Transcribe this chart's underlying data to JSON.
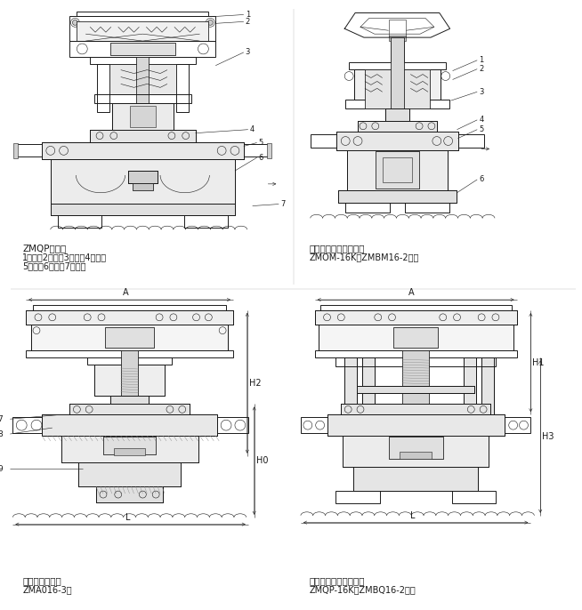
{
  "bg_color": "#ffffff",
  "line_color": "#1a1a1a",
  "fig_width": 6.54,
  "fig_height": 6.86,
  "labels": {
    "top_left_title": "ZMQP单座型",
    "top_left_desc1": "1、膜片2、推杆3、支架4、阀杆",
    "top_left_desc2": "5、阀芯6、阀座7、阀体",
    "top_right_title": "套筒切断阀（带手轮）",
    "top_right_desc": "ZMOM-16K（ZMBM16-2）型",
    "bot_left_title": "二位三通切断阀",
    "bot_left_desc": "ZMA016-3型",
    "bot_right_title": "单座切断阀（立柱式）",
    "bot_right_desc": "ZMQP-16K（ZMBQ16-2）型"
  }
}
